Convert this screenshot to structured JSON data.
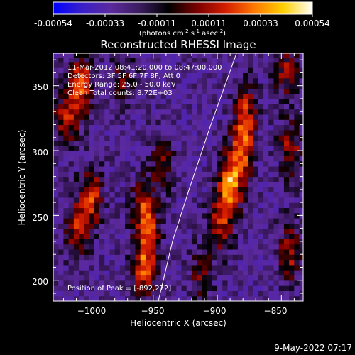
{
  "colorbar": {
    "tick_labels": [
      "-0.00054",
      "-0.00033",
      "-0.00011",
      "0.00011",
      "0.00033",
      "0.00054"
    ],
    "unit_label": "(photons cm",
    "unit_exp1": "-2",
    "unit_mid1": " s",
    "unit_exp2": "-1",
    "unit_mid2": " asec",
    "unit_exp3": "-2",
    "unit_tail": ")",
    "colors": [
      "#0000ff",
      "#3a1fc8",
      "#5b2a9e",
      "#3b1d5e",
      "#000000",
      "#7a0000",
      "#d41e00",
      "#ff7a00",
      "#ffd000",
      "#ffffff"
    ]
  },
  "annotation": {
    "time_range": "11-Mar-2012 08:41:20.000 to 08:47:00.000",
    "detectors": "Detectors: 3F 5F 6F 7F 8F, Att 0",
    "energy": "Energy Range: 25.0 - 50.0 keV",
    "clean": "Clean    Total counts: 8.72E+03",
    "peak": "Position of Peak = [-892,272]"
  },
  "footer": {
    "timestamp": "9-May-2022 07:17"
  },
  "chart_data": {
    "type": "heatmap",
    "title": "Reconstructed RHESSI Image",
    "xlabel": "Heliocentric X (arcsec)",
    "ylabel": "Heliocentric Y (arcsec)",
    "xlim": [
      -1028,
      -833
    ],
    "ylim": [
      184,
      375
    ],
    "x_ticks": [
      -1000,
      -950,
      -900,
      -850
    ],
    "x_tick_labels": [
      "−1000",
      "−950",
      "−900",
      "−850"
    ],
    "y_ticks": [
      200,
      250,
      300,
      350
    ],
    "y_tick_labels": [
      "200",
      "250",
      "300",
      "350"
    ],
    "colorbar_range": [
      -0.00054,
      0.00054
    ],
    "peak": [
      -892,
      272
    ],
    "limb_line": [
      [
        -946,
        184
      ],
      [
        -935,
        230
      ],
      [
        -922,
        270
      ],
      [
        -905,
        320
      ],
      [
        -885,
        375
      ]
    ],
    "hotspots": [
      {
        "x": -892,
        "y": 272,
        "value": 0.00054
      },
      {
        "x": -882,
        "y": 300,
        "value": 0.0004
      },
      {
        "x": -880,
        "y": 330,
        "value": 0.0003
      },
      {
        "x": -900,
        "y": 240,
        "value": 0.0003
      },
      {
        "x": -1008,
        "y": 350,
        "value": 0.00042
      },
      {
        "x": -1020,
        "y": 325,
        "value": 0.0003
      },
      {
        "x": -1000,
        "y": 262,
        "value": 0.00038
      },
      {
        "x": -1012,
        "y": 238,
        "value": 0.0003
      },
      {
        "x": -960,
        "y": 255,
        "value": 0.00033
      },
      {
        "x": -955,
        "y": 232,
        "value": 0.0003
      },
      {
        "x": -960,
        "y": 205,
        "value": 0.00036
      },
      {
        "x": -945,
        "y": 290,
        "value": 0.00022
      },
      {
        "x": -845,
        "y": 220,
        "value": 0.0003
      },
      {
        "x": -845,
        "y": 300,
        "value": 0.00028
      },
      {
        "x": -848,
        "y": 360,
        "value": 0.00026
      },
      {
        "x": -975,
        "y": 355,
        "value": 0.0002
      },
      {
        "x": -915,
        "y": 200,
        "value": 0.0002
      }
    ]
  }
}
